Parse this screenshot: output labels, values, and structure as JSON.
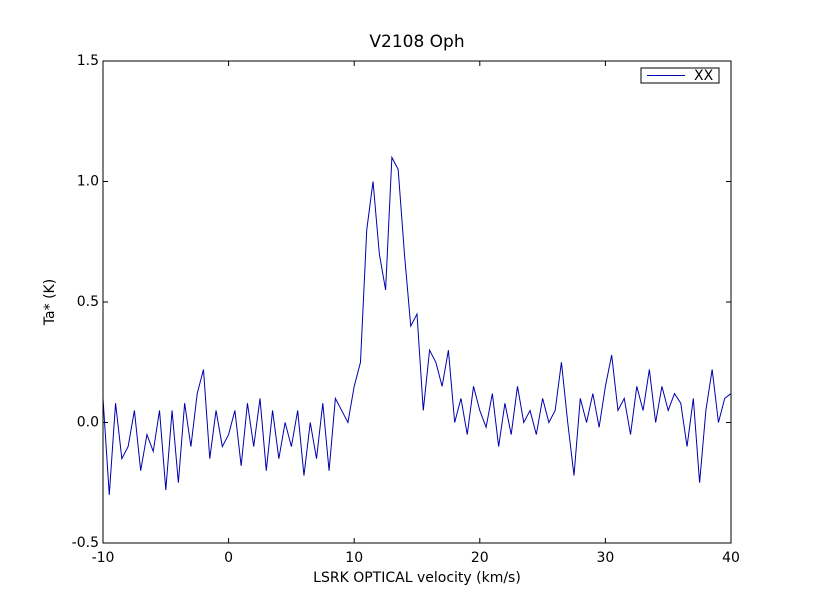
{
  "chart_data": {
    "type": "line",
    "title": "V2108 Oph",
    "xlabel": "LSRK OPTICAL velocity (km/s)",
    "ylabel": "Ta* (K)",
    "x": [
      -10,
      -9.5,
      -9,
      -8.5,
      -8,
      -7.5,
      -7,
      -6.5,
      -6,
      -5.5,
      -5,
      -4.5,
      -4,
      -3.5,
      -3,
      -2.5,
      -2,
      -1.5,
      -1,
      -0.5,
      0,
      0.5,
      1,
      1.5,
      2,
      2.5,
      3,
      3.5,
      4,
      4.5,
      5,
      5.5,
      6,
      6.5,
      7,
      7.5,
      8,
      8.5,
      9,
      9.5,
      10,
      10.5,
      11,
      11.5,
      12,
      12.5,
      13,
      13.5,
      14,
      14.5,
      15,
      15.5,
      16,
      16.5,
      17,
      17.5,
      18,
      18.5,
      19,
      19.5,
      20,
      20.5,
      21,
      21.5,
      22,
      22.5,
      23,
      23.5,
      24,
      24.5,
      25,
      25.5,
      26,
      26.5,
      27,
      27.5,
      28,
      28.5,
      29,
      29.5,
      30,
      30.5,
      31,
      31.5,
      32,
      32.5,
      33,
      33.5,
      34,
      34.5,
      35,
      35.5,
      36,
      36.5,
      37,
      37.5,
      38,
      38.5,
      39,
      39.5,
      40
    ],
    "series": [
      {
        "name": "XX",
        "color": "#0000aa",
        "values": [
          0.1,
          -0.3,
          0.08,
          -0.15,
          -0.1,
          0.05,
          -0.2,
          -0.05,
          -0.12,
          0.05,
          -0.28,
          0.05,
          -0.25,
          0.08,
          -0.1,
          0.12,
          0.22,
          -0.15,
          0.05,
          -0.1,
          -0.05,
          0.05,
          -0.18,
          0.08,
          -0.1,
          0.1,
          -0.2,
          0.05,
          -0.15,
          0.0,
          -0.1,
          0.05,
          -0.22,
          0.0,
          -0.15,
          0.08,
          -0.2,
          0.1,
          0.05,
          0.0,
          0.15,
          0.25,
          0.8,
          1.0,
          0.7,
          0.55,
          1.1,
          1.05,
          0.7,
          0.4,
          0.45,
          0.05,
          0.3,
          0.25,
          0.15,
          0.3,
          0.0,
          0.1,
          -0.05,
          0.15,
          0.05,
          -0.02,
          0.12,
          -0.1,
          0.08,
          -0.05,
          0.15,
          0.0,
          0.05,
          -0.05,
          0.1,
          0.0,
          0.05,
          0.25,
          0.0,
          -0.22,
          0.1,
          0.0,
          0.12,
          -0.02,
          0.15,
          0.28,
          0.05,
          0.1,
          -0.05,
          0.15,
          0.05,
          0.22,
          0.0,
          0.15,
          0.05,
          0.12,
          0.08,
          -0.1,
          0.1,
          -0.25,
          0.05,
          0.22,
          0.0,
          0.1,
          0.12
        ]
      }
    ],
    "xlim": [
      -10,
      40
    ],
    "xticks": [
      -10,
      0,
      10,
      20,
      30,
      40
    ],
    "ylim": [
      -0.5,
      1.5
    ],
    "yticks": [
      -0.5,
      {
        "value": 0,
        "label": "0.0"
      },
      0.5,
      {
        "value": 1,
        "label": "1.0"
      },
      1.5
    ],
    "legend": "upper right",
    "grid": false
  }
}
